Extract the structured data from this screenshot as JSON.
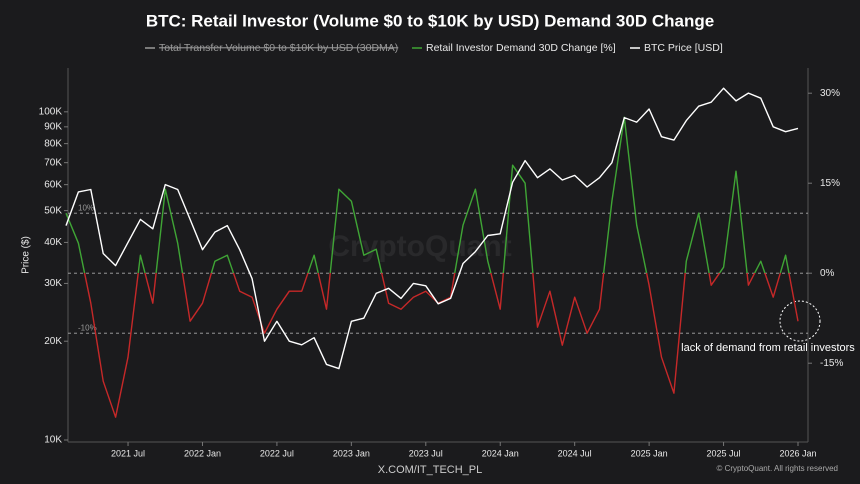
{
  "chart_data": {
    "type": "line",
    "title": "BTC: Retail Investor (Volume $0 to $10K by USD) Demand 30D Change",
    "y_label": "Price ($)",
    "hidden_series": [
      {
        "name": "Total Transfer Volume $0 to $10K by USD (30DMA)",
        "color": "#9a9a9a"
      }
    ],
    "x": [
      "2021 Feb",
      "2021 Mar",
      "2021 Apr",
      "2021 May",
      "2021 Jun",
      "2021 Jul",
      "2021 Aug",
      "2021 Sep",
      "2021 Oct",
      "2021 Nov",
      "2021 Dec",
      "2022 Jan",
      "2022 Feb",
      "2022 Mar",
      "2022 Apr",
      "2022 May",
      "2022 Jun",
      "2022 Jul",
      "2022 Aug",
      "2022 Sep",
      "2022 Oct",
      "2022 Nov",
      "2022 Dec",
      "2023 Jan",
      "2023 Feb",
      "2023 Mar",
      "2023 Apr",
      "2023 May",
      "2023 Jun",
      "2023 Jul",
      "2023 Aug",
      "2023 Sep",
      "2023 Oct",
      "2023 Nov",
      "2023 Dec",
      "2024 Jan",
      "2024 Feb",
      "2024 Mar",
      "2024 Apr",
      "2024 May",
      "2024 Jun",
      "2024 Jul",
      "2024 Aug",
      "2024 Sep",
      "2024 Oct",
      "2024 Nov",
      "2024 Dec",
      "2025 Jan",
      "2025 Feb",
      "2025 Mar",
      "2025 Apr",
      "2025 May",
      "2025 Jun",
      "2025 Jul",
      "2025 Aug",
      "2025 Sep",
      "2025 Oct",
      "2025 Nov",
      "2025 Dec",
      "2026 Jan"
    ],
    "series": [
      {
        "name": "Retail Investor Demand 30D Change [%]",
        "color": "#3fa535",
        "negative_color": "#c62828",
        "axis": "y2",
        "values": [
          10,
          5,
          -5,
          -18,
          -24,
          -14,
          3,
          -5,
          14,
          5,
          -8,
          -5,
          2,
          3,
          -3,
          -4,
          -10,
          -6,
          -3,
          -3,
          3,
          -6,
          14,
          12,
          3,
          4,
          -5,
          -6,
          -4,
          -3,
          -5,
          -4,
          8,
          14,
          2,
          -6,
          18,
          15,
          -9,
          -3,
          -12,
          -4,
          -10,
          -6,
          12,
          26,
          8,
          -2,
          -14,
          -20,
          2,
          10,
          -2,
          1,
          17,
          -2,
          2,
          -4,
          3,
          -8
        ]
      },
      {
        "name": "BTC Price [USD]",
        "color": "#ffffff",
        "values": [
          45000,
          57000,
          58000,
          37000,
          34000,
          40000,
          47000,
          44000,
          60000,
          58000,
          47000,
          38000,
          43000,
          45000,
          38000,
          31000,
          20000,
          23000,
          20000,
          19500,
          20500,
          17000,
          16500,
          23000,
          23500,
          28000,
          29000,
          27000,
          30000,
          29500,
          26000,
          27000,
          34500,
          37500,
          42000,
          42500,
          61000,
          71000,
          63000,
          67000,
          62000,
          64000,
          59000,
          63000,
          70000,
          96000,
          93000,
          102000,
          84000,
          82000,
          94000,
          104000,
          107000,
          118000,
          108000,
          114000,
          110000,
          90000,
          87000,
          89000
        ]
      }
    ],
    "xlim": [
      "2021 Feb",
      "2026 Jan"
    ],
    "xticks": [
      "2021 Jul",
      "2022 Jan",
      "2022 Jul",
      "2023 Jan",
      "2023 Jul",
      "2024 Jan",
      "2024 Jul",
      "2025 Jan",
      "2025 Jul",
      "2026 Jan"
    ],
    "ylim": [
      10000,
      136000
    ],
    "log_scale": true,
    "yticks": [
      {
        "value": 10000,
        "label": "10K"
      },
      {
        "value": 20000,
        "label": "20K"
      },
      {
        "value": 30000,
        "label": "30K"
      },
      {
        "value": 40000,
        "label": "40K"
      },
      {
        "value": 50000,
        "label": "50K"
      },
      {
        "value": 60000,
        "label": "60K"
      },
      {
        "value": 70000,
        "label": "70K"
      },
      {
        "value": 80000,
        "label": "80K"
      },
      {
        "value": 90000,
        "label": "90K"
      },
      {
        "value": 100000,
        "label": "100K"
      }
    ],
    "y2lim": [
      -27.8,
      34.2
    ],
    "y2ticks": [
      {
        "value": -15,
        "label": "-15%"
      },
      {
        "value": 0,
        "label": "0%"
      },
      {
        "value": 15,
        "label": "15%"
      },
      {
        "value": 30,
        "label": "30%"
      }
    ],
    "reference_lines": [
      {
        "value": 10,
        "label": "10%"
      },
      {
        "value": 0
      },
      {
        "value": -10,
        "label": "-10%"
      }
    ],
    "annotation": "lack of demand from retail investors",
    "watermark": "CryptoQuant",
    "source": "X.COM/IT_TECH_PL",
    "copyright": "© CryptoQuant. All rights reserved"
  }
}
